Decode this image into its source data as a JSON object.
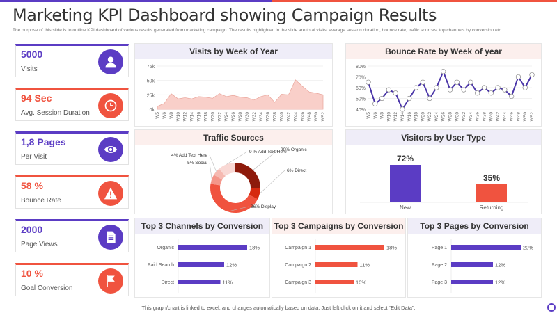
{
  "colors": {
    "purple": "#5b3cc4",
    "red": "#f0533f",
    "lavender": "#efedf8",
    "pink": "#fcefed"
  },
  "header": {
    "title": "Marketing KPI Dashboard showing Campaign Results",
    "description": "The purpose of this slide is to outline KPI dashboard of various results generated from marketing campaign. The results highlighted in the slide are total visits, average session duration, bounce rate, traffic sources, top channels by conversion etc."
  },
  "kpis": [
    {
      "value": "5000",
      "label": "Visits",
      "icon": "user-icon",
      "color": "#5b3cc4"
    },
    {
      "value": "94 Sec",
      "label": "Avg. Session Duration",
      "icon": "clock-icon",
      "color": "#f0533f"
    },
    {
      "value": "1,8 Pages",
      "label": "Per Visit",
      "icon": "eye-icon",
      "color": "#5b3cc4"
    },
    {
      "value": "58 %",
      "label": "Bounce Rate",
      "icon": "warning-icon",
      "color": "#f0533f"
    },
    {
      "value": "2000",
      "label": "Page Views",
      "icon": "document-icon",
      "color": "#5b3cc4"
    },
    {
      "value": "10 %",
      "label": "Goal Conversion",
      "icon": "flag-icon",
      "color": "#f0533f"
    }
  ],
  "chart_data": [
    {
      "id": "visits",
      "type": "area",
      "title": "Visits by Week of Year",
      "categories": [
        "W5",
        "W6",
        "W8",
        "W10",
        "W12",
        "W14",
        "W16",
        "W18",
        "W20",
        "W22",
        "W24",
        "W26",
        "W28",
        "W30",
        "W32",
        "W34",
        "W36",
        "W38",
        "W40",
        "W42",
        "W44",
        "W46",
        "W48",
        "W50",
        "W52"
      ],
      "values": [
        5,
        10,
        27,
        18,
        20,
        18,
        22,
        21,
        19,
        27,
        22,
        24,
        21,
        20,
        16,
        22,
        25,
        12,
        26,
        25,
        51,
        40,
        30,
        28,
        25
      ],
      "ylim": [
        0,
        75
      ],
      "yticks": [
        "0k",
        "25k",
        "50k",
        "75k"
      ],
      "grid": true
    },
    {
      "id": "bounce",
      "type": "line",
      "title": "Bounce Rate by Week of year",
      "categories": [
        "W5",
        "W6",
        "W8",
        "W10",
        "W12",
        "W14",
        "W16",
        "W18",
        "W20",
        "W22",
        "W24",
        "W26",
        "W28",
        "W30",
        "W32",
        "W34",
        "W36",
        "W38",
        "W40",
        "W42",
        "W44",
        "W46",
        "W48",
        "W50",
        "W52"
      ],
      "values": [
        65,
        45,
        50,
        58,
        55,
        40,
        50,
        60,
        65,
        50,
        60,
        75,
        58,
        65,
        58,
        65,
        55,
        60,
        55,
        60,
        58,
        52,
        70,
        60,
        72
      ],
      "ylim": [
        40,
        80
      ],
      "yticks": [
        "40%",
        "50%",
        "60%",
        "70%",
        "80%"
      ],
      "grid": true
    },
    {
      "id": "traffic",
      "type": "pie",
      "title": "Traffic Sources",
      "slices": [
        {
          "label": "20% Organic",
          "value": 20,
          "color": "#8e1a0b"
        },
        {
          "label": "6% Direct",
          "value": 6,
          "color": "#d6290f"
        },
        {
          "label": "36% Display",
          "value": 36,
          "color": "#f0533f"
        },
        {
          "label": "5% Social",
          "value": 5,
          "color": "#f4968a"
        },
        {
          "label": "4% Add Text Here",
          "value": 4,
          "color": "#f6b9b1"
        },
        {
          "label": "9 % Add Text Here",
          "value": 9,
          "color": "#f9d8d4"
        }
      ]
    },
    {
      "id": "usertype",
      "type": "bar",
      "title": "Visitors by User Type",
      "categories": [
        "New",
        "Returning"
      ],
      "values": [
        72,
        35
      ],
      "labels": [
        "72%",
        "35%"
      ],
      "colors": [
        "#5b3cc4",
        "#f0533f"
      ],
      "ylim": [
        0,
        80
      ]
    },
    {
      "id": "channels",
      "type": "bar",
      "orientation": "horizontal",
      "title": "Top 3 Channels by Conversion",
      "categories": [
        "Organic",
        "Paid Search",
        "Direct"
      ],
      "values": [
        18,
        12,
        11
      ],
      "labels": [
        "18%",
        "12%",
        "11%"
      ],
      "color": "#5b3cc4",
      "xlim": [
        0,
        20
      ]
    },
    {
      "id": "campaigns",
      "type": "bar",
      "orientation": "horizontal",
      "title": "Top 3 Campaigns by Conversion",
      "categories": [
        "Campaign 1",
        "Campaign 2",
        "Campaign 3"
      ],
      "values": [
        18,
        11,
        10
      ],
      "labels": [
        "18%",
        "11%",
        "10%"
      ],
      "color": "#f0533f",
      "xlim": [
        0,
        20
      ]
    },
    {
      "id": "pages",
      "type": "bar",
      "orientation": "horizontal",
      "title": "Top 3 Pages by Conversion",
      "categories": [
        "Page 1",
        "Page 2",
        "Page 3"
      ],
      "values": [
        20,
        12,
        12
      ],
      "labels": [
        "20%",
        "12%",
        "12%"
      ],
      "color": "#5b3cc4",
      "xlim": [
        0,
        22
      ]
    }
  ],
  "footer": "This graph/chart is linked to excel, and changes automatically based on data. Just left click on it and select “Edit Data”."
}
